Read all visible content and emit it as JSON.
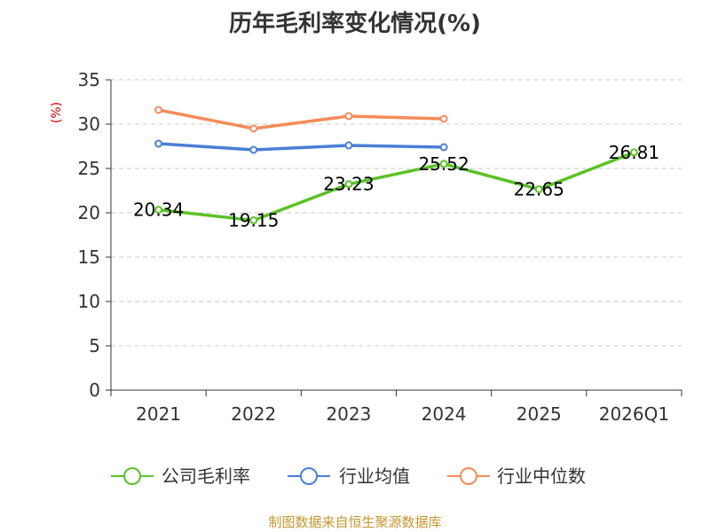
{
  "chart_data": {
    "type": "line",
    "title": "历年毛利率变化情况(%)",
    "ylabel": "(%)",
    "xlabel": "",
    "ylim": [
      0,
      35
    ],
    "yticks": [
      0,
      5,
      10,
      15,
      20,
      25,
      30,
      35
    ],
    "categories": [
      "2021",
      "2022",
      "2023",
      "2024",
      "2025",
      "2026Q1"
    ],
    "grid": true,
    "legend_position": "bottom",
    "series": [
      {
        "name": "公司毛利率",
        "color": "#5bc226",
        "values": [
          20.34,
          19.15,
          23.23,
          25.52,
          22.65,
          26.81
        ],
        "labels": [
          "20.34",
          "19.15",
          "23.23",
          "25.52",
          "22.65",
          "26.81"
        ]
      },
      {
        "name": "行业均值",
        "color": "#4a7fd8",
        "values": [
          27.8,
          27.1,
          27.6,
          27.4,
          null,
          null
        ]
      },
      {
        "name": "行业中位数",
        "color": "#f68c5a",
        "values": [
          31.6,
          29.5,
          30.9,
          30.6,
          null,
          null
        ]
      }
    ],
    "source": "制图数据来自恒生聚源数据库"
  }
}
